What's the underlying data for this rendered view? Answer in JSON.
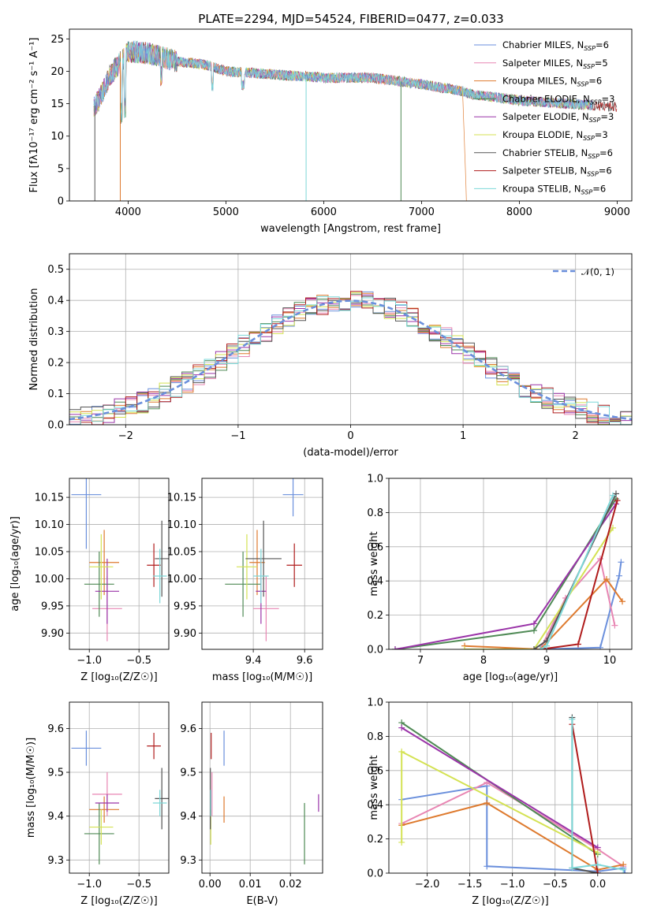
{
  "title": "PLATE=2294, MJD=54524, FIBERID=0477, z=0.033",
  "colors": {
    "Chabrier MILES": "#6a8fdc",
    "Salpeter MILES": "#e886b3",
    "Kroupa MILES": "#de7a2e",
    "Chabrier ELODIE": "#4f8a55",
    "Salpeter ELODIE": "#9a34a8",
    "Kroupa ELODIE": "#d4e253",
    "Chabrier STELIB": "#555555",
    "Salpeter STELIB": "#b01c1c",
    "Kroupa STELIB": "#7dd8d8"
  },
  "chart_data": [
    {
      "id": "spectrum",
      "type": "line",
      "xlabel": "wavelength [Angstrom, rest frame]",
      "ylabel": "Flux [fλ10⁻¹⁷ erg cm⁻² s⁻¹ A⁻¹]",
      "xlim": [
        3400,
        9150
      ],
      "ylim": [
        0,
        26.5
      ],
      "xticks": [
        4000,
        5000,
        6000,
        7000,
        8000,
        9000
      ],
      "yticks": [
        0,
        5,
        10,
        15,
        20,
        25
      ],
      "legend_position": "top-right",
      "continuum": {
        "x": [
          3650,
          3700,
          3800,
          3900,
          4000,
          4100,
          4300,
          4500,
          4800,
          5000,
          5500,
          6000,
          6500,
          7000,
          7200,
          7400,
          7500,
          8000,
          8500,
          9000
        ],
        "y": [
          14.5,
          15.5,
          19,
          21,
          23,
          23,
          22.5,
          21.5,
          21,
          20,
          19.5,
          19,
          19,
          18,
          17.5,
          17,
          16.5,
          15.5,
          15,
          14.5
        ]
      },
      "series": [
        {
          "name": "Chabrier MILES, N_SSP=6"
        },
        {
          "name": "Salpeter MILES, N_SSP=5"
        },
        {
          "name": "Kroupa MILES, N_SSP=6"
        },
        {
          "name": "Chabrier ELODIE, N_SSP=3"
        },
        {
          "name": "Salpeter ELODIE, N_SSP=3"
        },
        {
          "name": "Kroupa ELODIE, N_SSP=3"
        },
        {
          "name": "Chabrier STELIB, N_SSP=6"
        },
        {
          "name": "Salpeter STELIB, N_SSP=6"
        },
        {
          "name": "Kroupa STELIB, N_SSP=6"
        }
      ]
    },
    {
      "id": "residuals",
      "type": "line",
      "xlabel": "(data-model)/error",
      "ylabel": "Normed distribution",
      "xlim": [
        -2.5,
        2.5
      ],
      "ylim": [
        0,
        0.55
      ],
      "xticks": [
        -2,
        -1,
        0,
        1,
        2
      ],
      "yticks": [
        0.0,
        0.1,
        0.2,
        0.3,
        0.4,
        0.5
      ],
      "legend": "𝒩(0, 1)",
      "legend_position": "top-right",
      "bin_width": 0.1
    },
    {
      "id": "age_vs_Z",
      "type": "scatter",
      "xlabel": "Z [log₁₀(Z/Z☉)]",
      "ylabel": "age  [log₁₀(age/yr)]",
      "xlim": [
        -1.2,
        -0.2
      ],
      "ylim": [
        9.87,
        10.185
      ],
      "xticks": [
        -1.0,
        -0.5
      ],
      "yticks": [
        9.9,
        9.95,
        10.0,
        10.05,
        10.1,
        10.15
      ],
      "points": [
        {
          "model": "Chabrier MILES",
          "x": -1.03,
          "xerr": 0.15,
          "y": 10.155,
          "yerr": 0.1
        },
        {
          "model": "Salpeter MILES",
          "x": -0.82,
          "xerr": 0.15,
          "y": 9.945,
          "yerr": 0.06
        },
        {
          "model": "Kroupa MILES",
          "x": -0.85,
          "xerr": 0.15,
          "y": 10.03,
          "yerr": 0.06
        },
        {
          "model": "Chabrier ELODIE",
          "x": -0.9,
          "xerr": 0.15,
          "y": 9.99,
          "yerr": 0.06
        },
        {
          "model": "Salpeter ELODIE",
          "x": -0.82,
          "xerr": 0.12,
          "y": 9.977,
          "yerr": 0.06
        },
        {
          "model": "Kroupa ELODIE",
          "x": -0.88,
          "xerr": 0.12,
          "y": 10.022,
          "yerr": 0.06
        },
        {
          "model": "Chabrier STELIB",
          "x": -0.27,
          "xerr": 0.07,
          "y": 10.037,
          "yerr": 0.07
        },
        {
          "model": "Salpeter STELIB",
          "x": -0.35,
          "xerr": 0.07,
          "y": 10.025,
          "yerr": 0.04
        },
        {
          "model": "Kroupa STELIB",
          "x": -0.29,
          "xerr": 0.07,
          "y": 10.005,
          "yerr": 0.05
        }
      ]
    },
    {
      "id": "age_vs_mass",
      "type": "scatter",
      "xlabel": "mass [log₁₀(M/M☉)]",
      "ylabel": "",
      "xlim": [
        9.2,
        9.67
      ],
      "ylim": [
        9.87,
        10.185
      ],
      "xticks": [
        9.4,
        9.6
      ],
      "yticks": [
        9.9,
        9.95,
        10.0,
        10.05,
        10.1,
        10.15
      ],
      "points": [
        {
          "model": "Chabrier MILES",
          "x": 9.555,
          "xerr": 0.04,
          "y": 10.155,
          "yerr": 0.04
        },
        {
          "model": "Salpeter MILES",
          "x": 9.45,
          "xerr": 0.05,
          "y": 9.945,
          "yerr": 0.06
        },
        {
          "model": "Kroupa MILES",
          "x": 9.415,
          "xerr": 0.03,
          "y": 10.03,
          "yerr": 0.06
        },
        {
          "model": "Chabrier ELODIE",
          "x": 9.36,
          "xerr": 0.07,
          "y": 9.99,
          "yerr": 0.06
        },
        {
          "model": "Salpeter ELODIE",
          "x": 9.43,
          "xerr": 0.02,
          "y": 9.977,
          "yerr": 0.06
        },
        {
          "model": "Kroupa ELODIE",
          "x": 9.375,
          "xerr": 0.04,
          "y": 10.022,
          "yerr": 0.06
        },
        {
          "model": "Chabrier STELIB",
          "x": 9.44,
          "xerr": 0.07,
          "y": 10.037,
          "yerr": 0.07
        },
        {
          "model": "Salpeter STELIB",
          "x": 9.56,
          "xerr": 0.03,
          "y": 10.025,
          "yerr": 0.04
        },
        {
          "model": "Kroupa STELIB",
          "x": 9.43,
          "xerr": 0.03,
          "y": 10.005,
          "yerr": 0.05
        }
      ]
    },
    {
      "id": "mass_weight_vs_age",
      "type": "line",
      "xlabel": "age  [log₁₀(age/yr)]",
      "ylabel": "mass weight",
      "xlim": [
        6.5,
        10.35
      ],
      "ylim": [
        0,
        1
      ],
      "xticks": [
        7,
        8,
        9,
        10
      ],
      "yticks": [
        0.0,
        0.2,
        0.4,
        0.6,
        0.8,
        1.0
      ],
      "series": [
        {
          "model": "Chabrier MILES",
          "x": [
            8.9,
            9.85,
            10.15,
            10.18
          ],
          "y": [
            0.0,
            0.01,
            0.43,
            0.51
          ]
        },
        {
          "model": "Salpeter MILES",
          "x": [
            8.9,
            9.3,
            9.85,
            10.08
          ],
          "y": [
            0.0,
            0.3,
            0.53,
            0.14
          ]
        },
        {
          "model": "Kroupa MILES",
          "x": [
            7.7,
            8.9,
            9.95,
            10.2
          ],
          "y": [
            0.02,
            0.0,
            0.41,
            0.28
          ]
        },
        {
          "model": "Chabrier ELODIE",
          "x": [
            6.6,
            8.8,
            10.1
          ],
          "y": [
            0.0,
            0.11,
            0.88
          ]
        },
        {
          "model": "Salpeter ELODIE",
          "x": [
            6.6,
            8.8,
            10.1
          ],
          "y": [
            0.0,
            0.15,
            0.85
          ]
        },
        {
          "model": "Kroupa ELODIE",
          "x": [
            7.7,
            8.8,
            10.05
          ],
          "y": [
            0.0,
            0.0,
            0.71
          ]
        },
        {
          "model": "Chabrier STELIB",
          "x": [
            8.8,
            9.0,
            10.1
          ],
          "y": [
            0.0,
            0.05,
            0.91
          ]
        },
        {
          "model": "Salpeter STELIB",
          "x": [
            8.9,
            9.5,
            10.12
          ],
          "y": [
            0.0,
            0.03,
            0.87
          ]
        },
        {
          "model": "Kroupa STELIB",
          "x": [
            8.9,
            9.0,
            10.05
          ],
          "y": [
            0.0,
            0.02,
            0.9
          ]
        }
      ]
    },
    {
      "id": "mass_vs_Z",
      "type": "scatter",
      "xlabel": "Z [log₁₀(Z/Z☉)]",
      "ylabel": "mass [log₁₀(M/M☉)]",
      "xlim": [
        -1.2,
        -0.2
      ],
      "ylim": [
        9.27,
        9.66
      ],
      "xticks": [
        -1.0,
        -0.5
      ],
      "yticks": [
        9.3,
        9.4,
        9.5,
        9.6
      ],
      "points": [
        {
          "model": "Chabrier MILES",
          "x": -1.03,
          "xerr": 0.15,
          "y": 9.555,
          "yerr": 0.04
        },
        {
          "model": "Salpeter MILES",
          "x": -0.82,
          "xerr": 0.15,
          "y": 9.45,
          "yerr": 0.05
        },
        {
          "model": "Kroupa MILES",
          "x": -0.85,
          "xerr": 0.15,
          "y": 9.415,
          "yerr": 0.03
        },
        {
          "model": "Chabrier ELODIE",
          "x": -0.9,
          "xerr": 0.15,
          "y": 9.36,
          "yerr": 0.07
        },
        {
          "model": "Salpeter ELODIE",
          "x": -0.82,
          "xerr": 0.12,
          "y": 9.43,
          "yerr": 0.02
        },
        {
          "model": "Kroupa ELODIE",
          "x": -0.88,
          "xerr": 0.12,
          "y": 9.375,
          "yerr": 0.04
        },
        {
          "model": "Chabrier STELIB",
          "x": -0.27,
          "xerr": 0.07,
          "y": 9.44,
          "yerr": 0.07
        },
        {
          "model": "Salpeter STELIB",
          "x": -0.35,
          "xerr": 0.07,
          "y": 9.56,
          "yerr": 0.03
        },
        {
          "model": "Kroupa STELIB",
          "x": -0.29,
          "xerr": 0.07,
          "y": 9.43,
          "yerr": 0.03
        }
      ]
    },
    {
      "id": "mass_vs_ebv",
      "type": "scatter",
      "xlabel": "E(B-V)",
      "ylabel": "",
      "xlim": [
        -0.002,
        0.028
      ],
      "ylim": [
        9.27,
        9.66
      ],
      "xticks": [
        0.0,
        0.01,
        0.02
      ],
      "yticks": [
        9.3,
        9.4,
        9.5,
        9.6
      ],
      "points": [
        {
          "model": "Chabrier MILES",
          "x": 0.0035,
          "y": 9.555,
          "yerr": 0.04
        },
        {
          "model": "Salpeter MILES",
          "x": 0.0005,
          "y": 9.45,
          "yerr": 0.05
        },
        {
          "model": "Kroupa MILES",
          "x": 0.0035,
          "y": 9.415,
          "yerr": 0.03
        },
        {
          "model": "Chabrier ELODIE",
          "x": 0.0235,
          "y": 9.36,
          "yerr": 0.07
        },
        {
          "model": "Salpeter ELODIE",
          "x": 0.027,
          "y": 9.43,
          "yerr": 0.02
        },
        {
          "model": "Kroupa ELODIE",
          "x": 0.0002,
          "y": 9.375,
          "yerr": 0.04
        },
        {
          "model": "Chabrier STELIB",
          "x": 0.0001,
          "y": 9.44,
          "yerr": 0.07
        },
        {
          "model": "Salpeter STELIB",
          "x": 0.0003,
          "y": 9.56,
          "yerr": 0.03
        },
        {
          "model": "Kroupa STELIB",
          "x": 0.0002,
          "y": 9.43,
          "yerr": 0.03
        }
      ]
    },
    {
      "id": "mass_weight_vs_Z",
      "type": "line",
      "xlabel": "Z [log₁₀(Z/Z☉)]",
      "ylabel": "mass weight",
      "xlim": [
        -2.45,
        0.4
      ],
      "ylim": [
        0,
        1
      ],
      "xticks": [
        -2.0,
        -1.5,
        -1.0,
        -0.5,
        0.0
      ],
      "yticks": [
        0.0,
        0.2,
        0.4,
        0.6,
        0.8,
        1.0
      ],
      "series": [
        {
          "model": "Chabrier MILES",
          "x": [
            -2.3,
            -1.3,
            -1.3,
            0.0,
            0.3,
            0.32
          ],
          "y": [
            0.43,
            0.51,
            0.04,
            0.01,
            0.03,
            0.0
          ]
        },
        {
          "model": "Salpeter MILES",
          "x": [
            -2.3,
            -1.3,
            0.0,
            0.3
          ],
          "y": [
            0.29,
            0.53,
            0.14,
            0.04
          ]
        },
        {
          "model": "Kroupa MILES",
          "x": [
            -2.3,
            -1.3,
            0.0,
            0.3
          ],
          "y": [
            0.28,
            0.41,
            0.02,
            0.05
          ]
        },
        {
          "model": "Chabrier ELODIE",
          "x": [
            -2.3,
            0.0
          ],
          "y": [
            0.88,
            0.11
          ]
        },
        {
          "model": "Salpeter ELODIE",
          "x": [
            -2.3,
            0.0
          ],
          "y": [
            0.85,
            0.15
          ]
        },
        {
          "model": "Kroupa ELODIE",
          "x": [
            -2.3,
            -2.3,
            0.0
          ],
          "y": [
            0.18,
            0.71,
            0.12
          ]
        },
        {
          "model": "Chabrier STELIB",
          "x": [
            -0.3,
            -0.3,
            0.0
          ],
          "y": [
            0.91,
            0.03,
            0.0
          ]
        },
        {
          "model": "Salpeter STELIB",
          "x": [
            -0.3,
            0.0
          ],
          "y": [
            0.87,
            0.0
          ]
        },
        {
          "model": "Kroupa STELIB",
          "x": [
            -0.3,
            -0.3,
            0.0,
            0.3
          ],
          "y": [
            0.9,
            0.03,
            0.05,
            0.02
          ]
        }
      ]
    }
  ]
}
